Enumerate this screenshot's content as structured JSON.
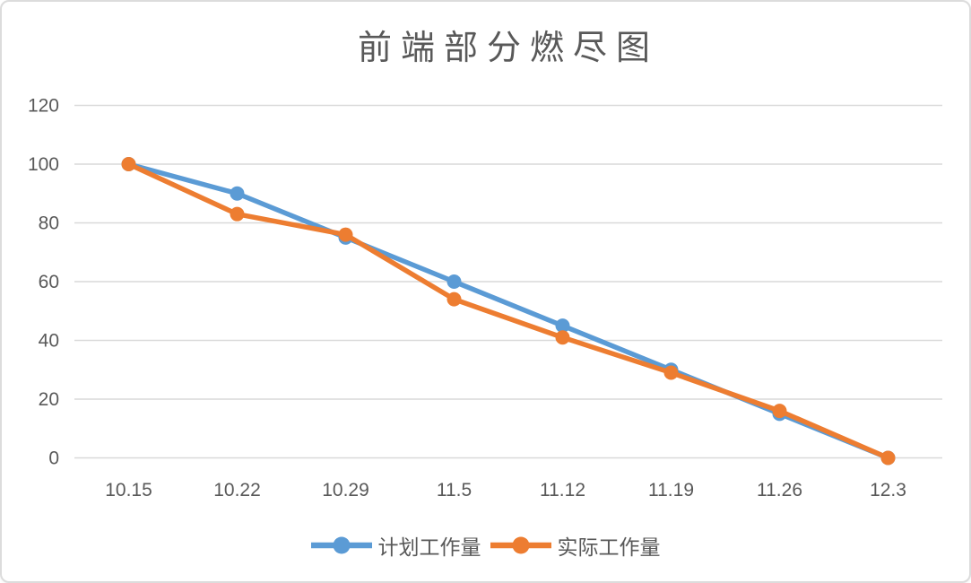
{
  "chart_data": {
    "type": "line",
    "title": "前端部分燃尽图",
    "categories": [
      "10.15",
      "10.22",
      "10.29",
      "11.5",
      "11.12",
      "11.19",
      "11.26",
      "12.3"
    ],
    "series": [
      {
        "name": "计划工作量",
        "color": "#5B9BD5",
        "values": [
          100,
          90,
          75,
          60,
          45,
          30,
          15,
          0
        ]
      },
      {
        "name": "实际工作量",
        "color": "#ED7D31",
        "values": [
          100,
          83,
          76,
          54,
          41,
          29,
          16,
          0
        ]
      }
    ],
    "xlabel": "",
    "ylabel": "",
    "ylim": [
      0,
      120
    ],
    "y_ticks": [
      0,
      20,
      40,
      60,
      80,
      100,
      120
    ],
    "grid": true,
    "legend_position": "bottom",
    "marker": "circle",
    "colors": {
      "gridline": "#D9D9D9",
      "text": "#595959",
      "background": "#FFFFFF",
      "card_border": "#DCDCDC"
    }
  }
}
